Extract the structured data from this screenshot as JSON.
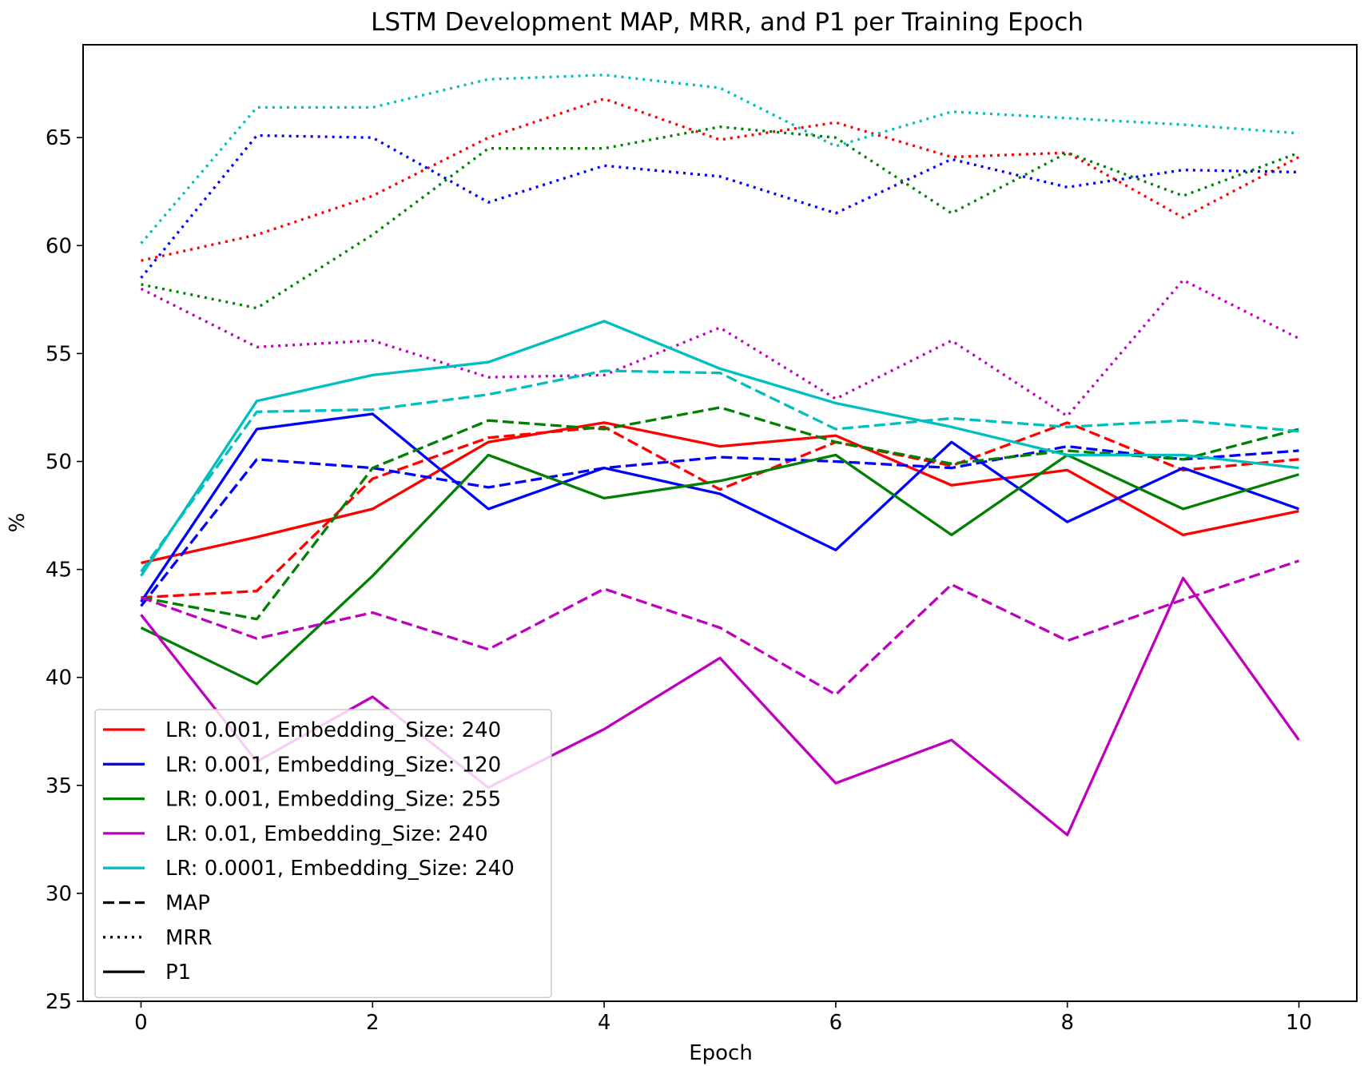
{
  "chart_data": {
    "type": "line",
    "title": "LSTM Development MAP, MRR, and P1 per Training Epoch",
    "xlabel": "Epoch",
    "ylabel": "%",
    "xlim": [
      -0.5,
      10.5
    ],
    "ylim": [
      25,
      69.3
    ],
    "xticks": [
      0,
      2,
      4,
      6,
      8,
      10
    ],
    "yticks": [
      25,
      30,
      35,
      40,
      45,
      50,
      55,
      60,
      65
    ],
    "grid": false,
    "legend_position": "lower-left",
    "legend": [
      {
        "label": "LR: 0.001, Embedding_Size: 240",
        "color": "#ff0000",
        "style": "solid"
      },
      {
        "label": "LR: 0.001, Embedding_Size: 120",
        "color": "#0000ff",
        "style": "solid"
      },
      {
        "label": "LR: 0.001, Embedding_Size: 255",
        "color": "#008000",
        "style": "solid"
      },
      {
        "label": "LR: 0.01, Embedding_Size: 240",
        "color": "#bf00bf",
        "style": "solid"
      },
      {
        "label": "LR: 0.0001, Embedding_Size: 240",
        "color": "#00bfbf",
        "style": "solid"
      },
      {
        "label": "MAP",
        "color": "#000000",
        "style": "dashed"
      },
      {
        "label": "MRR",
        "color": "#000000",
        "style": "dotted"
      },
      {
        "label": "P1",
        "color": "#000000",
        "style": "solid"
      }
    ],
    "x": [
      0,
      1,
      2,
      3,
      4,
      5,
      6,
      7,
      8,
      9,
      10
    ],
    "series": [
      {
        "config": "LR: 0.001, Embedding_Size: 240",
        "metric": "MAP",
        "color": "#ff0000",
        "style": "dashed",
        "values": [
          43.7,
          44.0,
          49.2,
          51.1,
          51.6,
          48.7,
          50.9,
          49.8,
          51.8,
          49.6,
          50.1
        ]
      },
      {
        "config": "LR: 0.001, Embedding_Size: 240",
        "metric": "MRR",
        "color": "#ff0000",
        "style": "dotted",
        "values": [
          59.3,
          60.5,
          62.3,
          65.0,
          66.8,
          64.9,
          65.7,
          64.1,
          64.3,
          61.3,
          64.1
        ]
      },
      {
        "config": "LR: 0.001, Embedding_Size: 240",
        "metric": "P1",
        "color": "#ff0000",
        "style": "solid",
        "values": [
          45.3,
          46.5,
          47.8,
          50.9,
          51.8,
          50.7,
          51.2,
          48.9,
          49.6,
          46.6,
          47.7
        ]
      },
      {
        "config": "LR: 0.001, Embedding_Size: 120",
        "metric": "MAP",
        "color": "#0000ff",
        "style": "dashed",
        "values": [
          43.3,
          50.1,
          49.7,
          48.8,
          49.7,
          50.2,
          50.0,
          49.7,
          50.7,
          50.1,
          50.5
        ]
      },
      {
        "config": "LR: 0.001, Embedding_Size: 120",
        "metric": "MRR",
        "color": "#0000ff",
        "style": "dotted",
        "values": [
          58.5,
          65.1,
          65.0,
          62.0,
          63.7,
          63.2,
          61.5,
          64.0,
          62.7,
          63.5,
          63.4
        ]
      },
      {
        "config": "LR: 0.001, Embedding_Size: 120",
        "metric": "P1",
        "color": "#0000ff",
        "style": "solid",
        "values": [
          43.5,
          51.5,
          52.2,
          47.8,
          49.7,
          48.5,
          45.9,
          50.9,
          47.2,
          49.7,
          47.8
        ]
      },
      {
        "config": "LR: 0.001, Embedding_Size: 255",
        "metric": "MAP",
        "color": "#008000",
        "style": "dashed",
        "values": [
          43.7,
          42.7,
          49.7,
          51.9,
          51.5,
          52.5,
          50.9,
          49.9,
          50.5,
          50.1,
          51.5
        ]
      },
      {
        "config": "LR: 0.001, Embedding_Size: 255",
        "metric": "MRR",
        "color": "#008000",
        "style": "dotted",
        "values": [
          58.2,
          57.1,
          60.5,
          64.5,
          64.5,
          65.5,
          65.0,
          61.5,
          64.3,
          62.3,
          64.3
        ]
      },
      {
        "config": "LR: 0.001, Embedding_Size: 255",
        "metric": "P1",
        "color": "#008000",
        "style": "solid",
        "values": [
          42.3,
          39.7,
          44.7,
          50.3,
          48.3,
          49.1,
          50.3,
          46.6,
          50.3,
          47.8,
          49.4
        ]
      },
      {
        "config": "LR: 0.01, Embedding_Size: 240",
        "metric": "MAP",
        "color": "#bf00bf",
        "style": "dashed",
        "values": [
          43.7,
          41.8,
          43.0,
          41.3,
          44.1,
          42.3,
          39.2,
          44.3,
          41.7,
          43.6,
          45.4
        ]
      },
      {
        "config": "LR: 0.01, Embedding_Size: 240",
        "metric": "MRR",
        "color": "#bf00bf",
        "style": "dotted",
        "values": [
          58.0,
          55.3,
          55.6,
          53.9,
          54.0,
          56.2,
          52.9,
          55.6,
          52.1,
          58.4,
          55.7
        ]
      },
      {
        "config": "LR: 0.01, Embedding_Size: 240",
        "metric": "P1",
        "color": "#bf00bf",
        "style": "solid",
        "values": [
          42.9,
          36.1,
          39.1,
          34.9,
          37.6,
          40.9,
          35.1,
          37.1,
          32.7,
          44.6,
          37.1
        ]
      },
      {
        "config": "LR: 0.0001, Embedding_Size: 240",
        "metric": "MAP",
        "color": "#00bfbf",
        "style": "dashed",
        "values": [
          44.9,
          52.3,
          52.4,
          53.1,
          54.2,
          54.1,
          51.5,
          52.0,
          51.6,
          51.9,
          51.4
        ]
      },
      {
        "config": "LR: 0.0001, Embedding_Size: 240",
        "metric": "MRR",
        "color": "#00bfbf",
        "style": "dotted",
        "values": [
          60.1,
          66.4,
          66.4,
          67.7,
          67.9,
          67.3,
          64.6,
          66.2,
          65.9,
          65.6,
          65.2
        ]
      },
      {
        "config": "LR: 0.0001, Embedding_Size: 240",
        "metric": "P1",
        "color": "#00bfbf",
        "style": "solid",
        "values": [
          44.7,
          52.8,
          54.0,
          54.6,
          56.5,
          54.3,
          52.7,
          51.6,
          50.3,
          50.3,
          49.7
        ]
      }
    ]
  }
}
